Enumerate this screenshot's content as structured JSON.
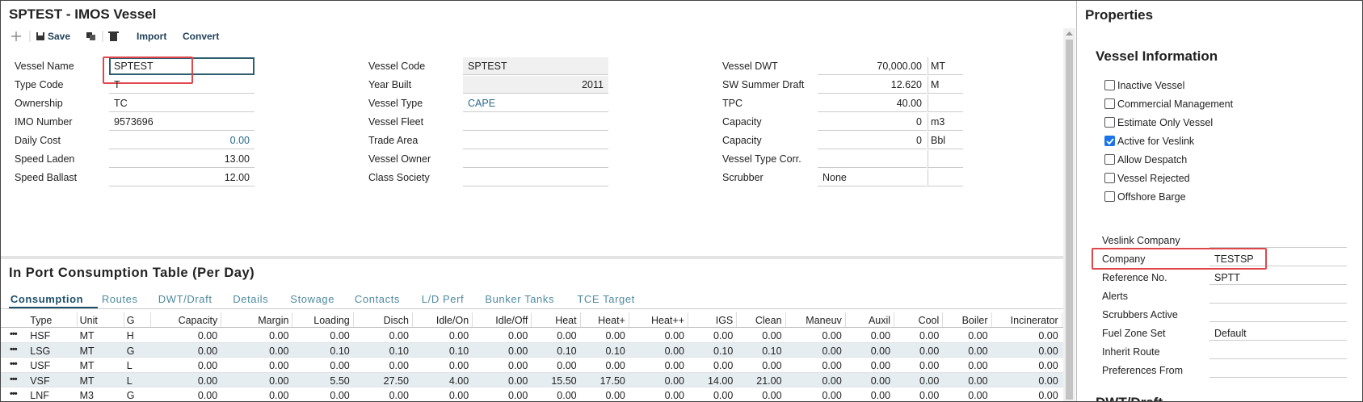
{
  "header": {
    "title": "SPTEST - IMOS Vessel"
  },
  "toolbar": [
    "Save",
    "Import",
    "Convert"
  ],
  "form": {
    "columns": [
      [
        {
          "label": "Vessel Name",
          "value": "SPTEST",
          "focused": true,
          "highlighted": true
        },
        {
          "label": "Type Code",
          "value": "T"
        },
        {
          "label": "Ownership",
          "value": "TC"
        },
        {
          "label": "IMO Number",
          "value": "9573696"
        },
        {
          "label": "Daily Cost",
          "value": "0.00",
          "link": true
        },
        {
          "label": "Speed Laden",
          "value": "13.00"
        },
        {
          "label": "Speed Ballast",
          "value": "12.00"
        }
      ],
      [
        {
          "label": "Vessel Code",
          "value": "SPTEST",
          "readonly": true
        },
        {
          "label": "Year Built",
          "value": "2011",
          "readonly": true
        },
        {
          "label": "Vessel Type",
          "value": "CAPE",
          "link": true
        },
        {
          "label": "Vessel Fleet"
        },
        {
          "label": "Trade Area"
        },
        {
          "label": "Vessel Owner"
        },
        {
          "label": "Class Society"
        }
      ],
      [
        {
          "label": "Vessel DWT",
          "value": "70,000.00",
          "unit": "MT"
        },
        {
          "label": "SW Summer Draft",
          "value": "12.620",
          "unit": "M"
        },
        {
          "label": "TPC",
          "value": "40.00"
        },
        {
          "label": "Capacity",
          "value": "0",
          "unit": "m3"
        },
        {
          "label": "Capacity",
          "value": "0",
          "unit": "Bbl"
        },
        {
          "label": "Vessel Type Corr."
        },
        {
          "label": "Scrubber",
          "value": "None"
        }
      ]
    ]
  },
  "table": {
    "title": "In Port Consumption Table (Per Day)",
    "tabs": [
      "Consumption",
      "Routes",
      "DWT/Draft",
      "Details",
      "Stowage",
      "Contacts",
      "L/D Perf",
      "Bunker Tanks",
      "TCE Target"
    ],
    "active_tab": 0,
    "columns": [
      "Type",
      "Unit",
      "G",
      "Capacity",
      "Margin",
      "Loading",
      "Disch",
      "Idle/On",
      "Idle/Off",
      "Heat",
      "Heat+",
      "Heat++",
      "IGS",
      "Clean",
      "Maneuv",
      "Auxil",
      "Cool",
      "Boiler",
      "Incinerator"
    ],
    "rows": [
      [
        "HSF",
        "MT",
        "H",
        "0.00",
        "0.00",
        "0.00",
        "0.00",
        "0.00",
        "0.00",
        "0.00",
        "0.00",
        "0.00",
        "0.00",
        "0.00",
        "0.00",
        "0.00",
        "0.00",
        "0.00",
        "0.00"
      ],
      [
        "LSG",
        "MT",
        "G",
        "0.00",
        "0.00",
        "0.10",
        "0.10",
        "0.10",
        "0.00",
        "0.10",
        "0.10",
        "0.00",
        "0.10",
        "0.10",
        "0.00",
        "0.00",
        "0.00",
        "0.00",
        "0.00"
      ],
      [
        "USF",
        "MT",
        "L",
        "0.00",
        "0.00",
        "0.00",
        "0.00",
        "0.00",
        "0.00",
        "0.00",
        "0.00",
        "0.00",
        "0.00",
        "0.00",
        "0.00",
        "0.00",
        "0.00",
        "0.00",
        "0.00"
      ],
      [
        "VSF",
        "MT",
        "L",
        "0.00",
        "0.00",
        "5.50",
        "27.50",
        "4.00",
        "0.00",
        "15.50",
        "17.50",
        "0.00",
        "14.00",
        "21.00",
        "0.00",
        "0.00",
        "0.00",
        "0.00",
        "0.00"
      ],
      [
        "LNF",
        "M3",
        "G",
        "0.00",
        "0.00",
        "0.00",
        "0.00",
        "0.00",
        "0.00",
        "0.00",
        "0.00",
        "0.00",
        "0.00",
        "0.00",
        "0.00",
        "0.00",
        "0.00",
        "0.00",
        "0.00"
      ]
    ]
  },
  "properties": {
    "title": "Properties",
    "section": "Vessel Information",
    "checkboxes": [
      {
        "label": "Inactive Vessel",
        "checked": false
      },
      {
        "label": "Commercial Management",
        "checked": false
      },
      {
        "label": "Estimate Only Vessel",
        "checked": false
      },
      {
        "label": "Active for Veslink",
        "checked": true
      },
      {
        "label": "Allow Despatch",
        "checked": false
      },
      {
        "label": "Vessel Rejected",
        "checked": false
      },
      {
        "label": "Offshore Barge",
        "checked": false
      }
    ],
    "fields": [
      {
        "label": "Veslink Company"
      },
      {
        "label": "Company",
        "value": "TESTSP",
        "highlighted": true
      },
      {
        "label": "Reference No.",
        "value": "SPTT"
      },
      {
        "label": "Alerts"
      },
      {
        "label": "Scrubbers Active"
      },
      {
        "label": "Fuel Zone Set",
        "value": "Default"
      },
      {
        "label": "Inherit Route"
      },
      {
        "label": "Preferences From"
      }
    ],
    "next_section": "DWT/Draft"
  }
}
